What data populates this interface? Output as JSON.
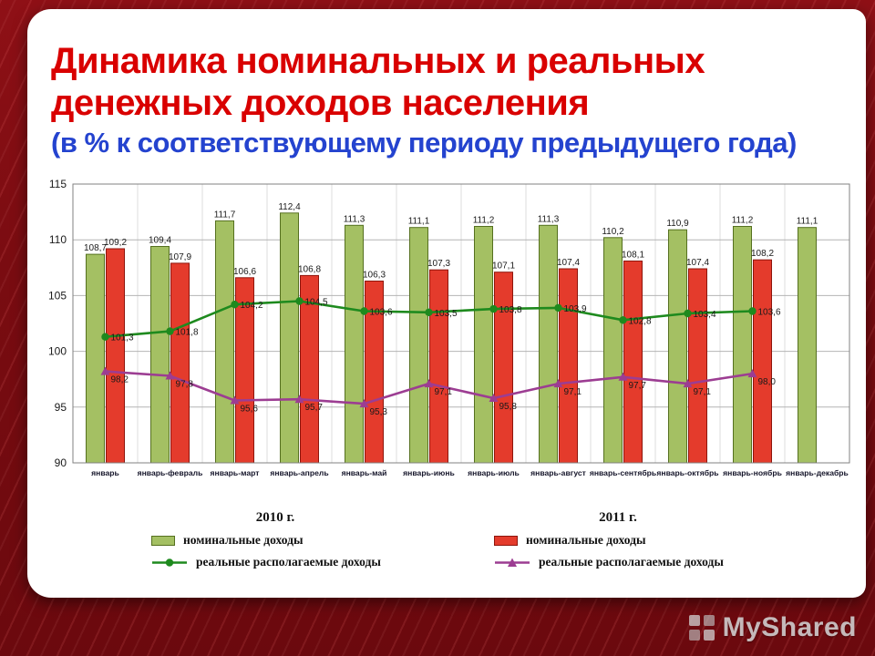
{
  "slide": {
    "title_line1": "Динамика номинальных и реальных",
    "title_line2": "денежных доходов населения",
    "subtitle": "(в % к соответствующему периоду предыдущего года)"
  },
  "colors": {
    "title_red": "#d90000",
    "subtitle_blue": "#2443cf",
    "frame_maroon": "#7a0c11",
    "bar_2010_green": "#a4c063",
    "bar_2011_red": "#e43b2c",
    "line_2010_green": "#1e8a1e",
    "line_2011_purple": "#9c3d92"
  },
  "chart_data": {
    "type": "combo_bar_line",
    "title": "",
    "xlabel": "",
    "ylabel": "",
    "ylim": [
      90,
      115
    ],
    "yticks": [
      90,
      95,
      100,
      105,
      110,
      115
    ],
    "grid": true,
    "legend_position": "bottom",
    "categories": [
      "январь",
      "январь-февраль",
      "январь-март",
      "январь-апрель",
      "январь-май",
      "январь-июнь",
      "январь-июль",
      "январь-август",
      "январь-сентябрь",
      "январь-октябрь",
      "январь-ноябрь",
      "январь-декабрь"
    ],
    "series": [
      {
        "key": "nominal-income-2010",
        "name": "номинальные доходы",
        "year": "2010 г.",
        "type": "bar",
        "color": "#a4c063",
        "border": "#55701f",
        "values": [
          108.7,
          109.4,
          111.7,
          112.4,
          111.3,
          111.1,
          111.2,
          111.3,
          110.2,
          110.9,
          111.2,
          111.1
        ]
      },
      {
        "key": "nominal-income-2011",
        "name": "номинальные доходы",
        "year": "2011 г.",
        "type": "bar",
        "color": "#e43b2c",
        "border": "#8e150c",
        "values": [
          109.2,
          107.9,
          106.6,
          106.8,
          106.3,
          107.3,
          107.1,
          107.4,
          108.1,
          107.4,
          108.2,
          null
        ]
      },
      {
        "key": "real-disposable-income-2010",
        "name": "реальные располагаемые доходы",
        "year": "2010 г.",
        "type": "line",
        "marker": "circle",
        "color": "#1e8a1e",
        "values": [
          101.3,
          101.8,
          104.2,
          104.5,
          103.6,
          103.5,
          103.8,
          103.9,
          102.8,
          103.4,
          103.6,
          null
        ]
      },
      {
        "key": "real-disposable-income-2011",
        "name": "реальные располагаемые доходы",
        "year": "2011 г.",
        "type": "line",
        "marker": "triangle",
        "color": "#9c3d92",
        "values": [
          98.2,
          97.8,
          95.6,
          95.7,
          95.3,
          97.1,
          95.8,
          97.1,
          97.7,
          97.1,
          98.0,
          null
        ]
      }
    ]
  },
  "legend": {
    "groups": [
      {
        "header": "2010 г.",
        "items": [
          "номинальные доходы",
          "реальные располагаемые доходы"
        ]
      },
      {
        "header": "2011 г.",
        "items": [
          "номинальные доходы",
          "реальные располагаемые доходы"
        ]
      }
    ]
  },
  "watermark": {
    "text": "MyShared"
  }
}
